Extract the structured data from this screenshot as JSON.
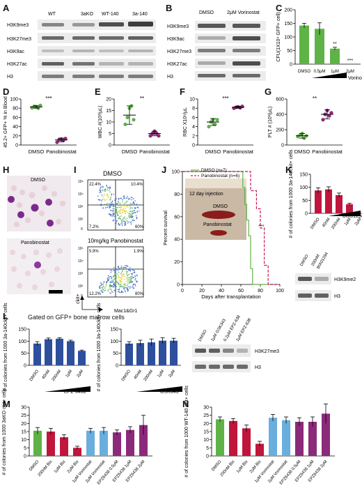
{
  "colors": {
    "green": "#5fb246",
    "purple": "#8c2a7a",
    "red": "#c0163c",
    "blue": "#2e4f9e",
    "lightblue": "#6aaedd",
    "pink": "#c2185b",
    "blot": "#3a3a3a"
  },
  "panels": {
    "A": {
      "label": "A",
      "lanes": [
        "WT",
        "3aKO",
        "WT-140",
        "3a-140"
      ],
      "rows": [
        "H3K9me3",
        "H3K27me3",
        "H3K9ac",
        "H3K27ac",
        "H3"
      ]
    },
    "B": {
      "label": "B",
      "lanes": [
        "DMSO",
        "2μM Vorinostat"
      ],
      "rows": [
        "H3K9me3",
        "H3K9ac",
        "H3K27me3",
        "H3K27ac",
        "H3"
      ]
    },
    "C": {
      "label": "C",
      "ylabel": "CFU(1X10⁴ GFP+ cell)",
      "categories": [
        "DMSO",
        "0.5μM",
        "1μM",
        "2μM"
      ],
      "values": [
        142,
        130,
        57,
        0
      ],
      "errors": [
        8,
        22,
        5,
        0
      ],
      "ylim": [
        0,
        200
      ],
      "yticks": [
        "0",
        "50",
        "100",
        "150",
        "200"
      ],
      "sig": [
        "",
        "",
        "**",
        "***"
      ],
      "treatment": "Vorinostat"
    },
    "D": {
      "label": "D",
      "ylabel": "45.2+ GFP+ % in Blood",
      "categories": [
        "DMSO",
        "Panobinostat"
      ],
      "ylim": [
        0,
        100
      ],
      "yticks": [
        "0",
        "20",
        "40",
        "60",
        "80",
        "100"
      ],
      "groups": [
        [
          81,
          84,
          83,
          80,
          86
        ],
        [
          6,
          12,
          13,
          10,
          14
        ]
      ],
      "means": [
        83,
        11
      ],
      "sig": "***"
    },
    "E": {
      "label": "E",
      "ylabel": "WBC #(10³/μL)",
      "categories": [
        "DMSO",
        "Panobinostat"
      ],
      "ylim": [
        0,
        20
      ],
      "yticks": [
        "0",
        "5",
        "10",
        "15",
        "20"
      ],
      "groups": [
        [
          9,
          12,
          16,
          17,
          11
        ],
        [
          4,
          5,
          6,
          5,
          4
        ]
      ],
      "means": [
        13,
        5
      ],
      "sig": "**"
    },
    "F": {
      "label": "F",
      "ylabel": "RBC X10⁶/μL",
      "categories": [
        "DMSO",
        "Panobinostat"
      ],
      "ylim": [
        0,
        10
      ],
      "yticks": [
        "0",
        "2",
        "4",
        "6",
        "8",
        "10"
      ],
      "groups": [
        [
          4,
          5,
          5.5,
          4.5,
          5.5
        ],
        [
          8,
          8.2,
          8.3,
          8.1,
          8.4
        ]
      ],
      "means": [
        5,
        8.2
      ],
      "sig": "***"
    },
    "G": {
      "label": "G",
      "ylabel": "PLT # (10³/μL)",
      "categories": [
        "DMSO",
        "Panobinostat"
      ],
      "ylim": [
        0,
        600
      ],
      "yticks": [
        "0",
        "200",
        "400",
        "600"
      ],
      "groups": [
        [
          110,
          130,
          150,
          90,
          120
        ],
        [
          330,
          400,
          450,
          380,
          420
        ]
      ],
      "means": [
        120,
        400
      ],
      "sig": "**"
    },
    "H": {
      "label": "H",
      "top": "DMSO",
      "bottom": "Panobinostat"
    },
    "I": {
      "label": "I",
      "title1": "DMSO",
      "title2": "10mg/kg Panobinostat",
      "q1": [
        "22.4%",
        "10.4%",
        "7.2%",
        "60%"
      ],
      "q2": [
        "5.9%",
        "1.9%",
        "12.2%",
        "80%"
      ],
      "xlabel": "Mac1&Gr1",
      "ylabel": "ckit+",
      "ticks": [
        "10⁵",
        "10⁴",
        "10³",
        "10²",
        "0"
      ]
    },
    "J": {
      "label": "J",
      "legend": [
        "DMSO (n=7)",
        "Panobinostat (n=6)"
      ],
      "inset": "12 day injection",
      "inset_labels": [
        "DMSO",
        "Panobinostat"
      ],
      "ylabel": "Percent survival",
      "xlabel": "Days after transplantation",
      "yticks": [
        "0",
        "20",
        "40",
        "60",
        "80",
        "100"
      ],
      "xticks": [
        "0",
        "20",
        "40",
        "60",
        "80",
        "100"
      ],
      "sig": "***"
    },
    "K": {
      "label": "K",
      "ylabel": "# of colonies from 1000 3a-140ckit+ cells",
      "categories": [
        "DMSO",
        "40nM",
        "200nM",
        "1μM",
        "2μM"
      ],
      "values": [
        88,
        92,
        70,
        35,
        0
      ],
      "errors": [
        10,
        10,
        8,
        4,
        0
      ],
      "ylim": [
        0,
        150
      ],
      "yticks": [
        "0",
        "50",
        "100",
        "150"
      ],
      "treatment": "BIX01294",
      "blot_lanes": [
        "DMSO",
        "200nM",
        "BIX01294"
      ],
      "blot_rows": [
        "H3K9me2",
        "H3"
      ]
    },
    "L": {
      "label": "L",
      "title": "Gated on GFP+ bone marrow cells",
      "ylabel": "# of colonies from 1000 3a-140ckit+ cells",
      "chart1": {
        "categories": [
          "DMSO",
          "40nM",
          "200nM",
          "1μM",
          "2μM"
        ],
        "values": [
          90,
          108,
          110,
          100,
          60
        ],
        "errors": [
          8,
          5,
          4,
          4,
          3
        ],
        "treatment": "EPZ-6438"
      },
      "chart2": {
        "categories": [
          "DMSO",
          "40nM",
          "200nM",
          "1μM",
          "2μM"
        ],
        "values": [
          90,
          92,
          95,
          102,
          102
        ],
        "errors": [
          8,
          12,
          14,
          12,
          10
        ],
        "treatment": "GSK343"
      },
      "ylim": [
        0,
        150
      ],
      "yticks": [
        "0",
        "50",
        "100",
        "150"
      ],
      "blot_lanes": [
        "DMSO",
        "1μM GSK343",
        "0.2μM EPZ-638",
        "1μM EPZ-638"
      ],
      "blot_rows": [
        "H3K27me3",
        "H3"
      ]
    },
    "M": {
      "label": "M",
      "ylabel": "# of colonies from 1000 3aKO ckit+ cells",
      "ylim": [
        0,
        30
      ],
      "yticks": [
        "0",
        "5",
        "10",
        "15",
        "20",
        "25",
        "30"
      ]
    },
    "N": {
      "label": "N",
      "ylabel": "# of colonies from 1000 WT-140 ckit+ cells",
      "ylim": [
        0,
        30
      ],
      "yticks": [
        "0",
        "5",
        "10",
        "15",
        "20",
        "25",
        "30"
      ]
    }
  },
  "chart_data": [
    {
      "type": "bar",
      "panel": "C",
      "categories": [
        "DMSO",
        "0.5μM",
        "1μM",
        "2μM"
      ],
      "values": [
        142,
        130,
        57,
        0
      ],
      "ylabel": "CFU(1X10⁴ GFP+ cell)",
      "ylim": [
        0,
        200
      ]
    },
    {
      "type": "scatter",
      "panel": "D",
      "categories": [
        "DMSO",
        "Panobinostat"
      ],
      "series": [
        {
          "values": [
            81,
            84,
            83,
            80,
            86
          ]
        },
        {
          "values": [
            6,
            12,
            13,
            10,
            14
          ]
        }
      ],
      "ylabel": "45.2+ GFP+ % in Blood",
      "ylim": [
        0,
        100
      ]
    },
    {
      "type": "scatter",
      "panel": "E",
      "categories": [
        "DMSO",
        "Panobinostat"
      ],
      "series": [
        {
          "values": [
            9,
            12,
            16,
            17,
            11
          ]
        },
        {
          "values": [
            4,
            5,
            6,
            5,
            4
          ]
        }
      ],
      "ylabel": "WBC #(10³/μL)",
      "ylim": [
        0,
        20
      ]
    },
    {
      "type": "scatter",
      "panel": "F",
      "categories": [
        "DMSO",
        "Panobinostat"
      ],
      "series": [
        {
          "values": [
            4,
            5,
            5.5,
            4.5,
            5.5
          ]
        },
        {
          "values": [
            8,
            8.2,
            8.3,
            8.1,
            8.4
          ]
        }
      ],
      "ylabel": "RBC X10⁶/μL",
      "ylim": [
        0,
        10
      ]
    },
    {
      "type": "scatter",
      "panel": "G",
      "categories": [
        "DMSO",
        "Panobinostat"
      ],
      "series": [
        {
          "values": [
            110,
            130,
            150,
            90,
            120
          ]
        },
        {
          "values": [
            330,
            400,
            450,
            380,
            420
          ]
        }
      ],
      "ylabel": "PLT # (10³/μL)",
      "ylim": [
        0,
        600
      ]
    },
    {
      "type": "line",
      "panel": "J",
      "ylabel": "Percent survival",
      "xlabel": "Days after transplantation",
      "series": [
        {
          "name": "DMSO (n=7)",
          "x": [
            0,
            62,
            62,
            64,
            64,
            66,
            66,
            68,
            68,
            70,
            70,
            72,
            72,
            100
          ],
          "y": [
            100,
            100,
            86,
            86,
            71,
            71,
            57,
            57,
            43,
            43,
            14,
            14,
            0,
            0
          ]
        },
        {
          "name": "Panobinostat (n=6)",
          "x": [
            0,
            70,
            70,
            76,
            76,
            80,
            80,
            84,
            84,
            88,
            88,
            100
          ],
          "y": [
            100,
            100,
            83,
            83,
            67,
            67,
            50,
            50,
            17,
            17,
            0,
            0
          ]
        }
      ]
    },
    {
      "type": "bar",
      "panel": "K",
      "categories": [
        "DMSO",
        "40nM",
        "200nM",
        "1μM",
        "2μM"
      ],
      "values": [
        88,
        92,
        70,
        35,
        0
      ],
      "ylim": [
        0,
        150
      ]
    },
    {
      "type": "bar",
      "panel": "L1",
      "categories": [
        "DMSO",
        "40nM",
        "200nM",
        "1μM",
        "2μM"
      ],
      "values": [
        90,
        108,
        110,
        100,
        60
      ],
      "ylim": [
        0,
        150
      ]
    },
    {
      "type": "bar",
      "panel": "L2",
      "categories": [
        "DMSO",
        "40nM",
        "200nM",
        "1μM",
        "2μM"
      ],
      "values": [
        90,
        92,
        95,
        102,
        102
      ],
      "ylim": [
        0,
        150
      ]
    },
    {
      "type": "bar",
      "panel": "M",
      "categories": [
        "DMSO",
        "200nM Bix",
        "1μM Bix",
        "2μM Bix",
        "1μM Vorinostat",
        "2μM Vorinostat",
        "EPZ6438 0.5μM",
        "EPZ6438 1μM",
        "EPZ6438 2μM"
      ],
      "values": [
        15.5,
        15,
        11.5,
        5,
        15.5,
        15.5,
        14.5,
        16,
        19
      ],
      "errors": [
        2,
        2,
        1.5,
        1,
        1.5,
        2,
        1.5,
        2,
        6
      ],
      "ylim": [
        0,
        30
      ]
    },
    {
      "type": "bar",
      "panel": "N",
      "categories": [
        "DMSO",
        "200nM Bix",
        "1μM Bix",
        "2μM Bix",
        "1μM Vorinostat",
        "2μM Vorinostat",
        "EPZ6438 0.5μM",
        "EPZ6438 1μM",
        "EPZ6438 2μM"
      ],
      "values": [
        22.5,
        21.5,
        17,
        7.5,
        23.5,
        22,
        21,
        21,
        26
      ],
      "errors": [
        1.5,
        1.5,
        2,
        1.5,
        2,
        2,
        2.5,
        3,
        6
      ],
      "ylim": [
        0,
        30
      ]
    }
  ]
}
